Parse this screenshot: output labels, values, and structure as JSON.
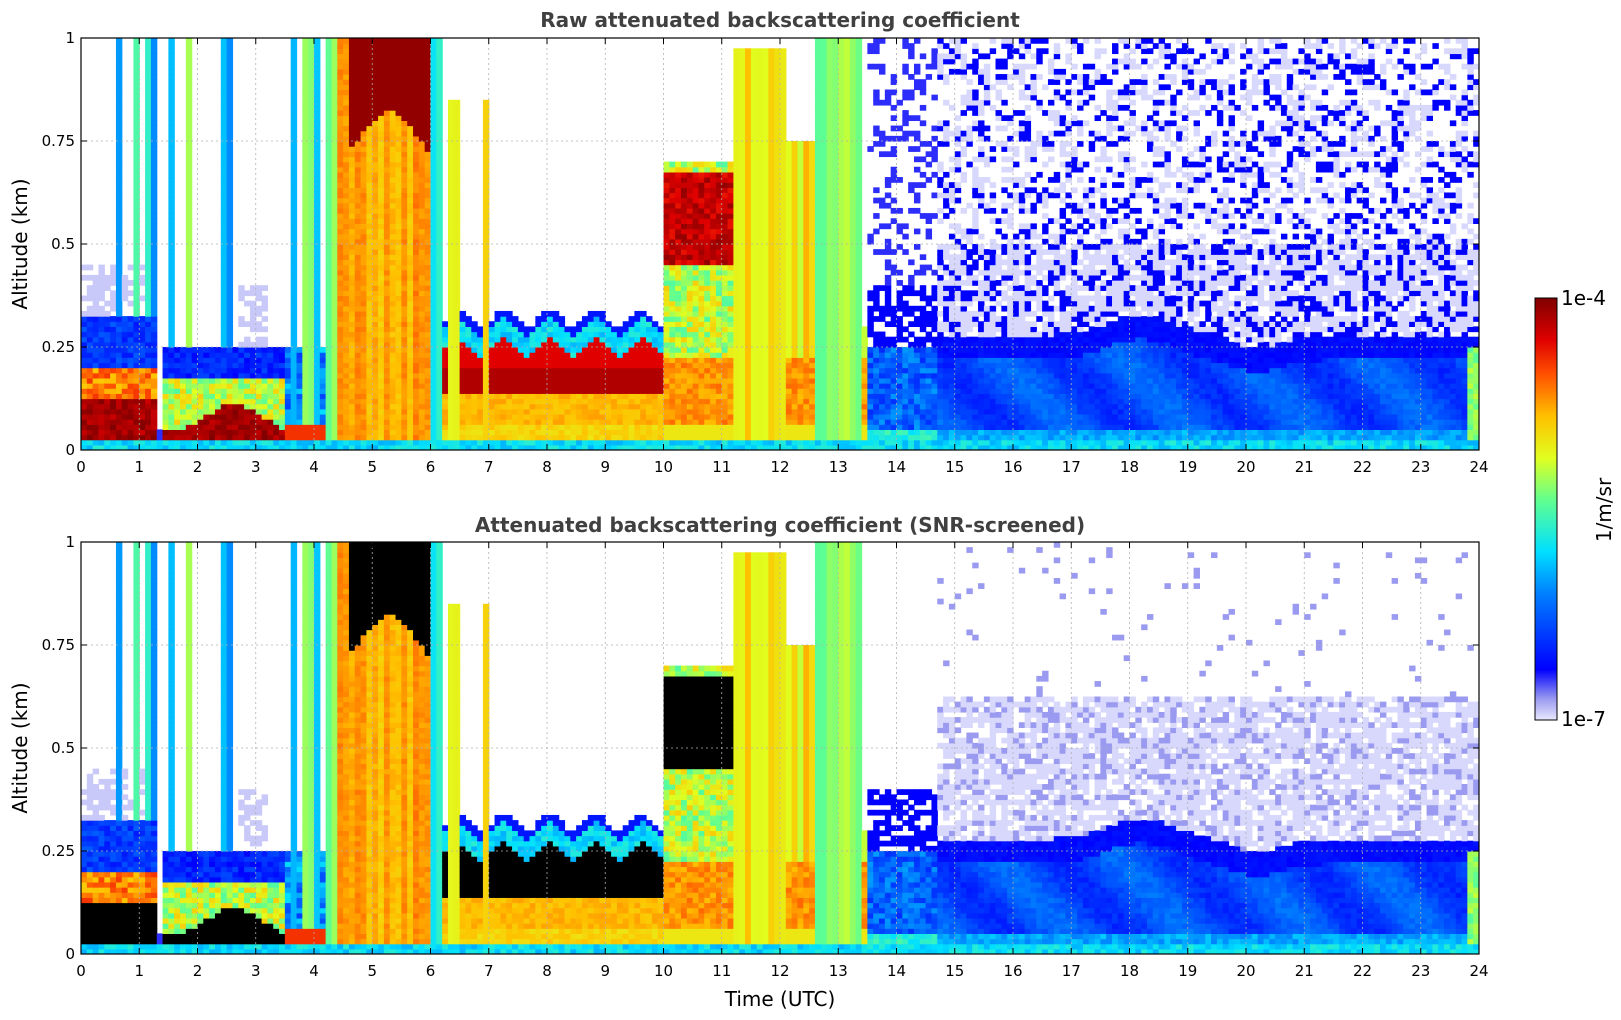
{
  "chart_data": [
    {
      "type": "heatmap",
      "title": "Raw attenuated backscattering coefficient",
      "xlabel": "",
      "ylabel": "Altitude (km)",
      "xlim": [
        0,
        24
      ],
      "ylim": [
        0,
        1
      ],
      "xticks": [
        "0",
        "1",
        "2",
        "3",
        "4",
        "5",
        "6",
        "7",
        "8",
        "9",
        "10",
        "11",
        "12",
        "13",
        "14",
        "15",
        "16",
        "17",
        "18",
        "19",
        "20",
        "21",
        "22",
        "23",
        "24"
      ],
      "yticks": [
        "0",
        "0.25",
        "0.5",
        "0.75",
        "1"
      ],
      "grid": true,
      "screened": false
    },
    {
      "type": "heatmap",
      "title": "Attenuated backscattering coefficient (SNR-screened)",
      "xlabel": "Time (UTC)",
      "ylabel": "Altitude (km)",
      "xlim": [
        0,
        24
      ],
      "ylim": [
        0,
        1
      ],
      "xticks": [
        "0",
        "1",
        "2",
        "3",
        "4",
        "5",
        "6",
        "7",
        "8",
        "9",
        "10",
        "11",
        "12",
        "13",
        "14",
        "15",
        "16",
        "17",
        "18",
        "19",
        "20",
        "21",
        "22",
        "23",
        "24"
      ],
      "yticks": [
        "0",
        "0.25",
        "0.5",
        "0.75",
        "1"
      ],
      "grid": true,
      "screened": true
    }
  ],
  "colorbar": {
    "label": "1/m/sr",
    "max_label": "1e-4",
    "min_label": "1e-7",
    "colormap": "jet",
    "scale": "log"
  },
  "colors": {
    "title": "#404040",
    "saturated": "#7f0000",
    "screened_saturated": "#000000"
  }
}
